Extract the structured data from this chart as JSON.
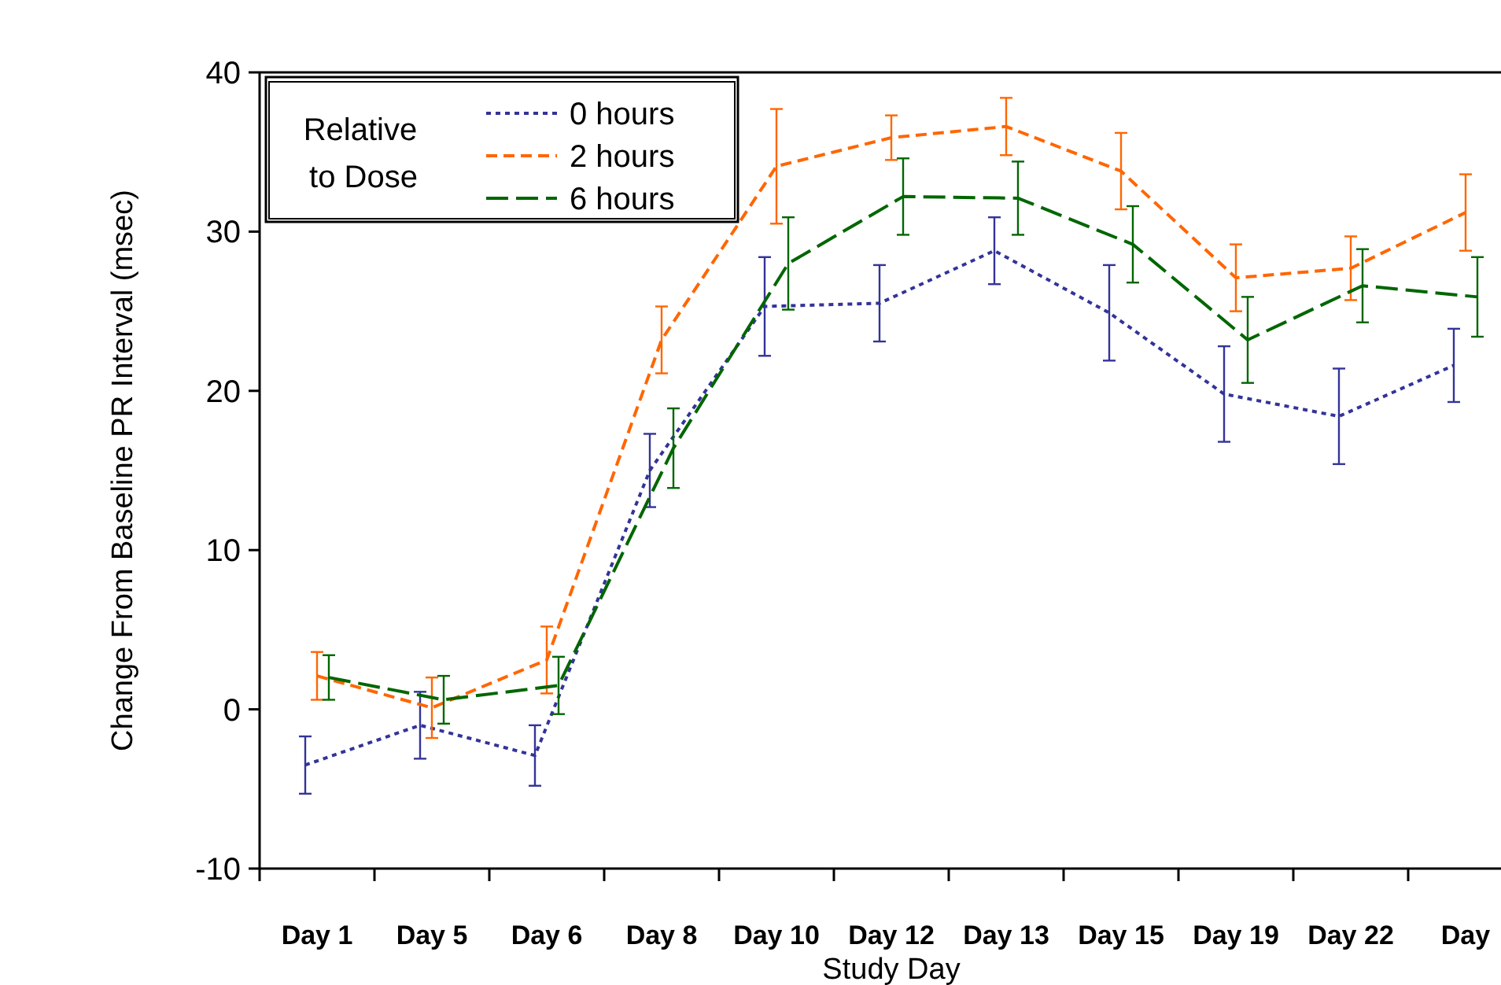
{
  "chart_data": {
    "type": "line",
    "xlabel": "Study Day",
    "ylabel": "Change From Baseline PR Interval (msec)",
    "legend_title": "Relative to Dose",
    "legend": "top left",
    "grid": false,
    "marker": "none",
    "categories": [
      "Day 1",
      "Day 5",
      "Day 6",
      "Day 8",
      "Day 10",
      "Day 12",
      "Day 13",
      "Day 15",
      "Day 19",
      "Day 22",
      "Day"
    ],
    "ylim": [
      -10,
      40
    ],
    "yticks": [
      -10,
      0,
      10,
      20,
      30,
      40
    ],
    "series": [
      {
        "name": "0 hours",
        "color": "#333399",
        "line_style": "dotted",
        "values": [
          -3.5,
          -1.0,
          -2.9,
          15.0,
          25.3,
          25.5,
          28.8,
          24.9,
          19.8,
          18.4,
          21.6
        ],
        "errors": [
          1.8,
          2.1,
          1.9,
          2.3,
          3.1,
          2.4,
          2.1,
          3.0,
          3.0,
          3.0,
          2.3
        ]
      },
      {
        "name": "2 hours",
        "color": "#ff6600",
        "line_style": "dashed",
        "values": [
          2.1,
          0.1,
          3.1,
          23.2,
          34.1,
          35.9,
          36.6,
          33.8,
          27.1,
          27.7,
          31.2
        ],
        "errors": [
          1.5,
          1.9,
          2.1,
          2.1,
          3.6,
          1.4,
          1.8,
          2.4,
          2.1,
          2.0,
          2.4
        ]
      },
      {
        "name": "6 hours",
        "color": "#006600",
        "line_style": "dashed",
        "values": [
          2.0,
          0.6,
          1.5,
          16.4,
          28.0,
          32.2,
          32.1,
          29.2,
          23.2,
          26.6,
          25.9
        ],
        "errors": [
          1.4,
          1.5,
          1.8,
          2.5,
          2.9,
          2.4,
          2.3,
          2.4,
          2.7,
          2.3,
          2.5
        ]
      }
    ]
  }
}
